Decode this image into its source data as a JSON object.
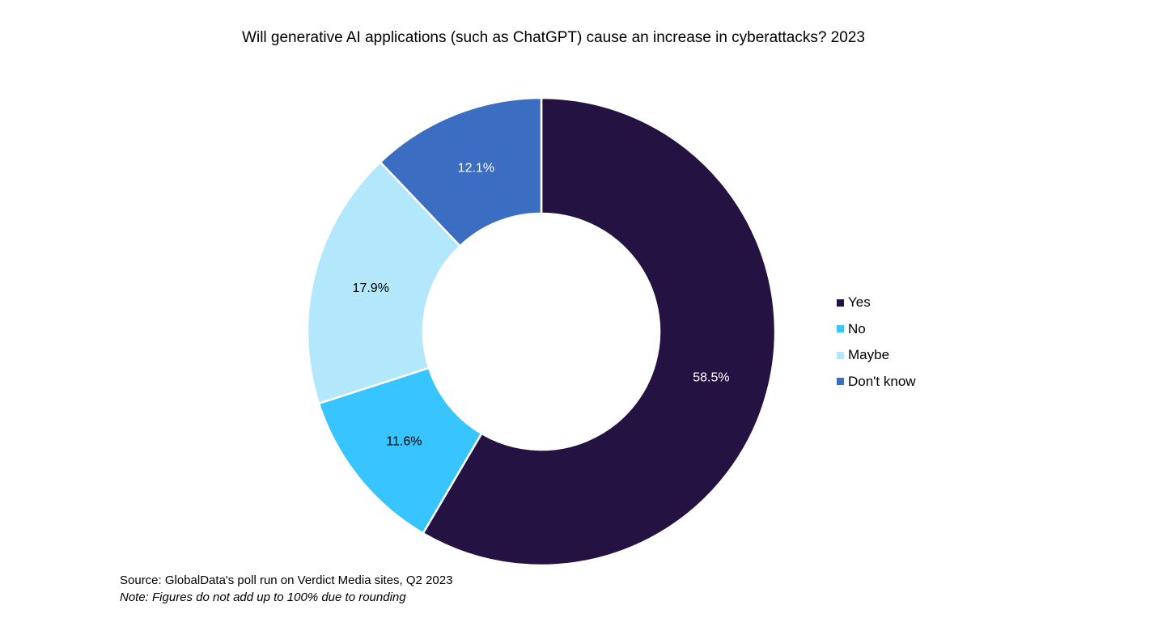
{
  "chart_data": {
    "type": "donut",
    "title": "Will generative AI applications (such as ChatGPT) cause an increase in cyberattacks? 2023",
    "categories": [
      "Yes",
      "No",
      "Maybe",
      "Don't know"
    ],
    "values": [
      58.5,
      11.6,
      17.9,
      12.1
    ],
    "data_labels": [
      "58.5%",
      "11.6%",
      "17.9%",
      "12.1%"
    ],
    "colors": [
      "#231242",
      "#38c4ff",
      "#b3e7fc",
      "#3b6dc2"
    ],
    "label_colors": [
      "#ffffff",
      "#000000",
      "#000000",
      "#ffffff"
    ],
    "legend_position": "right",
    "start_angle": "12 o'clock, clockwise"
  },
  "source": "Source: GlobalData's poll run on Verdict Media sites, Q2 2023",
  "note": "Note: Figures do not add up to 100% due to rounding"
}
